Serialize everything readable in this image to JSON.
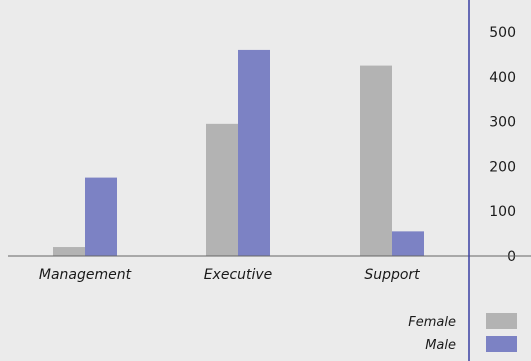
{
  "chart_data": {
    "type": "bar",
    "categories": [
      "Management",
      "Executive",
      "Support"
    ],
    "series": [
      {
        "name": "Female",
        "values": [
          20,
          295,
          425
        ],
        "color": "#b3b3b3"
      },
      {
        "name": "Male",
        "values": [
          175,
          460,
          55
        ],
        "color": "#7c82c4"
      }
    ],
    "ylim": [
      0,
      500
    ],
    "yticks": [
      0,
      100,
      200,
      300,
      400,
      500
    ],
    "y_axis_position": "right",
    "legend": "bottom-right",
    "grid": false,
    "colors": {
      "plot_background": "#ebebeb",
      "axis_line": "#3b3fa3",
      "baseline": "#666666"
    }
  }
}
